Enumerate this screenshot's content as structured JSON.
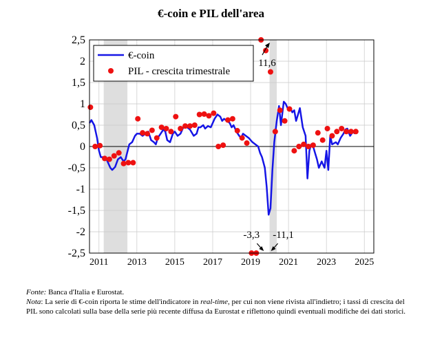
{
  "chart_data": {
    "type": "line",
    "title": "€-coin e PIL dell'area",
    "xlabel": "",
    "ylabel": "",
    "ylim": [
      -2.5,
      2.5
    ],
    "xlim": [
      2010.5,
      2025.5
    ],
    "yticks": [
      "2,5",
      "2",
      "1,5",
      "1",
      "0,5",
      "0",
      "-0,5",
      "-1",
      "-1,5",
      "-2",
      "-2,5"
    ],
    "xticks": [
      "2011",
      "2013",
      "2015",
      "2017",
      "2019",
      "2021",
      "2023",
      "2025"
    ],
    "legend_position": "top-left",
    "grid": true,
    "shaded_periods": [
      [
        2011.25,
        2012.5
      ],
      [
        2020.0,
        2020.38
      ]
    ],
    "series": [
      {
        "name": "€-coin",
        "kind": "line",
        "color": "#1515e6",
        "x": [
          2010.5,
          2010.6,
          2010.75,
          2010.9,
          2011.0,
          2011.1,
          2011.25,
          2011.4,
          2011.5,
          2011.6,
          2011.7,
          2011.85,
          2012.0,
          2012.15,
          2012.3,
          2012.4,
          2012.6,
          2012.75,
          2012.9,
          2013.0,
          2013.15,
          2013.3,
          2013.45,
          2013.6,
          2013.75,
          2013.9,
          2014.0,
          2014.1,
          2014.25,
          2014.4,
          2014.5,
          2014.6,
          2014.75,
          2014.9,
          2015.0,
          2015.15,
          2015.3,
          2015.5,
          2015.65,
          2015.8,
          2016.0,
          2016.15,
          2016.25,
          2016.35,
          2016.5,
          2016.6,
          2016.75,
          2016.9,
          2017.0,
          2017.1,
          2017.25,
          2017.4,
          2017.5,
          2017.6,
          2017.75,
          2017.9,
          2018.0,
          2018.1,
          2018.25,
          2018.4,
          2018.5,
          2018.6,
          2018.75,
          2018.9,
          2019.0,
          2019.1,
          2019.25,
          2019.4,
          2019.5,
          2019.6,
          2019.75,
          2019.85,
          2019.95,
          2020.05,
          2020.15,
          2020.25,
          2020.38,
          2020.5,
          2020.6,
          2020.75,
          2020.85,
          2021.0,
          2021.1,
          2021.2,
          2021.3,
          2021.4,
          2021.5,
          2021.6,
          2021.75,
          2021.9,
          2022.0,
          2022.1,
          2022.2,
          2022.3,
          2022.4,
          2022.5,
          2022.6,
          2022.75,
          2022.9,
          2023.0,
          2023.1,
          2023.2,
          2023.3,
          2023.5,
          2023.6,
          2023.75,
          2023.9,
          2024.0,
          2024.1,
          2024.25,
          2024.4,
          2024.5
        ],
        "y": [
          0.55,
          0.62,
          0.5,
          0.2,
          -0.1,
          -0.25,
          -0.25,
          -0.3,
          -0.4,
          -0.5,
          -0.55,
          -0.48,
          -0.3,
          -0.25,
          -0.35,
          -0.3,
          0.05,
          0.1,
          0.25,
          0.3,
          0.3,
          0.25,
          0.3,
          0.35,
          0.15,
          0.1,
          0.05,
          0.2,
          0.3,
          0.4,
          0.35,
          0.15,
          0.1,
          0.3,
          0.35,
          0.25,
          0.3,
          0.5,
          0.45,
          0.4,
          0.25,
          0.3,
          0.45,
          0.45,
          0.5,
          0.42,
          0.48,
          0.45,
          0.55,
          0.65,
          0.75,
          0.7,
          0.6,
          0.65,
          0.6,
          0.55,
          0.45,
          0.5,
          0.35,
          0.25,
          0.2,
          0.3,
          0.25,
          0.2,
          0.15,
          0.1,
          0.05,
          0.0,
          -0.15,
          -0.25,
          -0.5,
          -0.95,
          -1.6,
          -1.45,
          -0.55,
          0.1,
          0.6,
          0.95,
          0.5,
          1.05,
          1.0,
          0.85,
          0.9,
          0.8,
          0.85,
          0.6,
          0.75,
          0.9,
          0.45,
          0.25,
          -0.75,
          -0.1,
          0.05,
          0.0,
          -0.15,
          -0.3,
          -0.5,
          -0.35,
          -0.5,
          -0.1,
          -0.55,
          0.25,
          0.05,
          0.1,
          0.05,
          0.2,
          0.3,
          0.4,
          0.42,
          0.25,
          0.35,
          0.3
        ]
      },
      {
        "name": "PIL - crescita trimestrale",
        "kind": "scatter",
        "color": "#ee1111",
        "x": [
          2010.55,
          2010.8,
          2011.05,
          2011.3,
          2011.55,
          2011.8,
          2012.05,
          2012.3,
          2012.55,
          2012.8,
          2013.05,
          2013.3,
          2013.55,
          2013.8,
          2014.05,
          2014.3,
          2014.55,
          2014.8,
          2015.05,
          2015.3,
          2015.55,
          2015.8,
          2016.05,
          2016.3,
          2016.55,
          2016.8,
          2017.05,
          2017.3,
          2017.55,
          2017.8,
          2018.05,
          2018.3,
          2018.55,
          2018.8,
          2019.05,
          2019.3,
          2019.55,
          2019.8,
          2020.05,
          2020.3,
          2020.55,
          2020.8,
          2021.05,
          2021.3,
          2021.55,
          2021.8,
          2022.05,
          2022.3,
          2022.55,
          2022.8,
          2023.05,
          2023.3,
          2023.55,
          2023.8,
          2024.05,
          2024.3,
          2024.55
        ],
        "y": [
          0.92,
          0.0,
          0.02,
          -0.28,
          -0.3,
          -0.22,
          -0.15,
          -0.4,
          -0.38,
          -0.38,
          0.65,
          0.32,
          0.3,
          0.38,
          0.2,
          0.45,
          0.42,
          0.35,
          0.7,
          0.42,
          0.48,
          0.48,
          0.5,
          0.75,
          0.76,
          0.72,
          0.78,
          0.0,
          0.03,
          0.62,
          0.65,
          0.37,
          0.2,
          0.08,
          -2.5,
          -2.5,
          2.5,
          2.25,
          1.75,
          0.35,
          0.85,
          0.6,
          0.88,
          -0.1,
          0.0,
          0.05,
          0.0,
          0.03,
          0.32,
          0.15,
          0.42,
          0.25,
          0.35,
          0.42,
          0.35,
          0.35,
          0.35
        ]
      }
    ],
    "annotations": [
      {
        "text": "11,6",
        "x": 2020.05,
        "y": 2.5
      },
      {
        "text": "-3,3",
        "x": 2019.7,
        "y": -2.5
      },
      {
        "text": "-11,1",
        "x": 2020.0,
        "y": -2.5
      }
    ]
  },
  "notes": {
    "source_label": "Fonte:",
    "source_text": " Banca d'Italia e Eurostat.",
    "note_label": "Nota",
    "note_text_1": ": La serie di €-coin riporta le stime dell'indicatore in ",
    "note_italic": "real-time",
    "note_text_2": ", per cui non viene rivista all'indietro; i tassi di crescita del PIL sono calcolati sulla base della serie più recente diffusa da Eurostat e riflettono quindi eventuali modifiche dei dati storici."
  }
}
